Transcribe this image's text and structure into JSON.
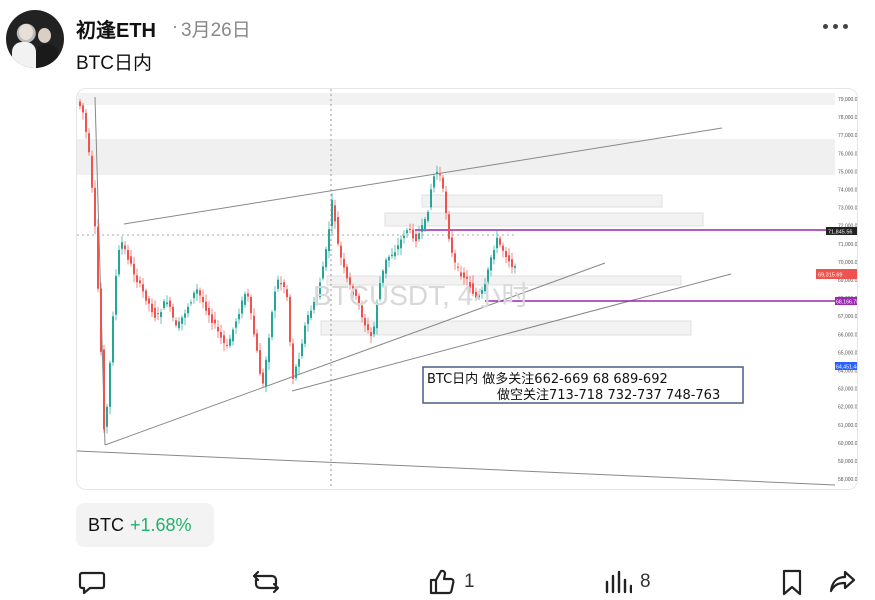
{
  "post": {
    "author": "初逢ETH",
    "separator": "·",
    "date": "3月26日",
    "text": "BTC日内"
  },
  "chart": {
    "watermark": "BTCUSDT, 4小时",
    "annotation_line1": "BTC日内   做多关注662-669   68    689-692",
    "annotation_line2": "做空关注713-718   732-737   748-763",
    "price_axis": [
      "79,000.00",
      "78,000.00",
      "77,000.00",
      "76,000.00",
      "75,000.00",
      "74,000.00",
      "73,000.00",
      "72,000.00",
      "71,000.00",
      "70,000.00",
      "69,000.00",
      "68,000.00",
      "67,000.00",
      "66,000.00",
      "65,000.00",
      "64,000.00",
      "63,000.00",
      "62,000.00",
      "61,000.00",
      "60,000.00",
      "59,000.00",
      "58,000.00"
    ],
    "label_upper": "71,845.56",
    "label_current": "69,315.69",
    "label_lower": "68,166.78",
    "label_blue": "64,451.44",
    "colors": {
      "up": "#26a69a",
      "down": "#ef5350",
      "purple": "#9c27b0",
      "blue": "#2962ff"
    }
  },
  "ticker": {
    "symbol": "BTC",
    "change": "+1.68%",
    "change_color": "#20b26c"
  },
  "actions": {
    "like_count": "1",
    "view_count": "8"
  }
}
